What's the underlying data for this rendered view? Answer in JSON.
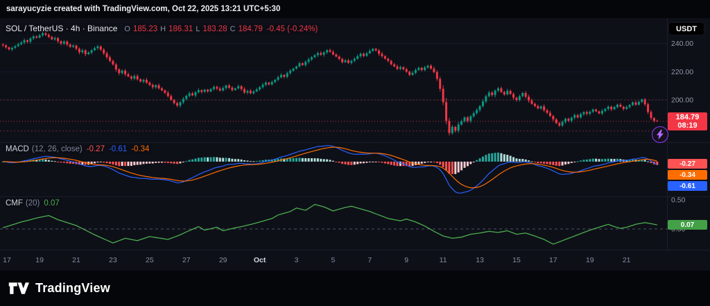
{
  "attribution": {
    "text": "sarayucyzie created with TradingView.com, Oct 22, 2025 13:21 UTC+5:30"
  },
  "header": {
    "symbol_title": "SOL / TetherUS · 4h · Binance",
    "ohlc_items": [
      {
        "label": "O",
        "value": "185.23"
      },
      {
        "label": "H",
        "value": "186.31"
      },
      {
        "label": "L",
        "value": "183.28"
      },
      {
        "label": "C",
        "value": "184.79"
      }
    ],
    "change": "-0.45 (-0.24%)",
    "value_color": "#f23645",
    "label_color": "#8a8fa0",
    "currency_button": "USDT"
  },
  "price_axis": {
    "labels": [
      {
        "text": "240.00",
        "price": 240
      },
      {
        "text": "220.00",
        "price": 220
      },
      {
        "text": "200.00",
        "price": 200
      }
    ],
    "last_price_badge": {
      "price": "184.79",
      "countdown": "08:19",
      "color": "#f23645"
    }
  },
  "indicators": {
    "macd": {
      "title": "MACD",
      "params": "(12, 26, close)",
      "status_values": [
        {
          "text": "-0.27",
          "color": "#ff5252"
        },
        {
          "text": "-0.61",
          "color": "#2962ff"
        },
        {
          "text": "-0.34",
          "color": "#ff6d00"
        }
      ],
      "badges": [
        {
          "text": "-0.27",
          "color": "#ff5252"
        },
        {
          "text": "-0.34",
          "color": "#ff6d00"
        },
        {
          "text": "-0.61",
          "color": "#2962ff"
        }
      ]
    },
    "cmf": {
      "title": "CMF",
      "params": "(20)",
      "value": "0.07",
      "value_color": "#4caf50",
      "badge": {
        "text": "0.07",
        "color": "#43a047"
      },
      "axis_labels": [
        {
          "text": "0.50",
          "value": 0.5
        },
        {
          "text": "0.00",
          "value": 0.0
        }
      ]
    }
  },
  "time_axis": {
    "labels": [
      {
        "text": "17",
        "index": 0
      },
      {
        "text": "19",
        "index": 12
      },
      {
        "text": "21",
        "index": 24
      },
      {
        "text": "23",
        "index": 36
      },
      {
        "text": "25",
        "index": 48
      },
      {
        "text": "27",
        "index": 60
      },
      {
        "text": "29",
        "index": 72
      },
      {
        "text": "Oct",
        "index": 84,
        "bold": true
      },
      {
        "text": "3",
        "index": 96
      },
      {
        "text": "5",
        "index": 108
      },
      {
        "text": "7",
        "index": 120
      },
      {
        "text": "9",
        "index": 132
      },
      {
        "text": "11",
        "index": 144
      },
      {
        "text": "13",
        "index": 156
      },
      {
        "text": "15",
        "index": 168
      },
      {
        "text": "17",
        "index": 180
      },
      {
        "text": "19",
        "index": 192
      },
      {
        "text": "21",
        "index": 204
      }
    ]
  },
  "footer": {
    "brand": "TradingView"
  },
  "chart_data": {
    "type": "candlestick",
    "symbol": "SOL / TetherUS",
    "exchange": "Binance",
    "interval": "4h",
    "panels": [
      "price",
      "MACD (12, 26, close)",
      "CMF (20)"
    ],
    "price_range": [
      170,
      258
    ],
    "last_candle": {
      "open": 185.23,
      "high": 186.31,
      "low": 183.28,
      "close": 184.79,
      "change": -0.45,
      "change_pct": -0.24
    },
    "closes": [
      238.6,
      237.2,
      235.8,
      236.9,
      238.1,
      239.4,
      240.6,
      242.3,
      241.2,
      243.6,
      245.0,
      244.1,
      245.8,
      247.3,
      246.1,
      244.6,
      242.9,
      243.8,
      241.6,
      239.9,
      241.3,
      239.2,
      237.6,
      238.5,
      236.2,
      233.8,
      235.1,
      232.4,
      233.5,
      235.2,
      236.7,
      237.9,
      235.6,
      233.0,
      230.2,
      227.6,
      225.1,
      221.6,
      219.0,
      220.7,
      218.2,
      216.6,
      215.1,
      216.9,
      214.6,
      213.0,
      214.2,
      212.2,
      210.6,
      209.0,
      210.4,
      208.2,
      206.7,
      205.0,
      202.7,
      200.0,
      197.7,
      196.0,
      198.4,
      200.7,
      202.9,
      204.6,
      203.2,
      205.4,
      206.9,
      205.7,
      207.2,
      206.0,
      207.7,
      209.2,
      208.0,
      206.7,
      208.4,
      210.2,
      208.7,
      207.0,
      208.2,
      209.7,
      207.7,
      205.2,
      206.4,
      204.7,
      206.0,
      207.4,
      209.0,
      210.7,
      212.2,
      211.0,
      212.7,
      214.2,
      216.0,
      217.7,
      216.4,
      219.0,
      220.7,
      222.2,
      223.7,
      226.0,
      224.7,
      227.0,
      228.7,
      230.2,
      231.7,
      233.2,
      232.0,
      233.7,
      235.2,
      234.0,
      232.2,
      230.7,
      229.0,
      226.7,
      228.0,
      226.2,
      227.7,
      229.2,
      231.0,
      232.7,
      231.2,
      233.0,
      234.7,
      236.2,
      235.0,
      232.7,
      231.0,
      229.2,
      227.7,
      225.2,
      223.7,
      222.0,
      223.2,
      221.7,
      220.0,
      217.7,
      219.2,
      221.2,
      222.7,
      221.2,
      223.0,
      224.2,
      222.2,
      219.7,
      214.9,
      207.9,
      198.4,
      185.2,
      176.6,
      180.9,
      178.2,
      182.6,
      184.9,
      187.6,
      185.2,
      188.4,
      190.6,
      192.9,
      195.6,
      198.9,
      202.6,
      205.2,
      203.4,
      206.6,
      208.2,
      205.6,
      203.9,
      206.4,
      204.2,
      201.6,
      199.9,
      202.6,
      204.9,
      202.2,
      199.6,
      197.2,
      195.6,
      193.9,
      195.4,
      192.6,
      190.9,
      188.6,
      186.2,
      183.6,
      181.9,
      184.4,
      186.6,
      185.2,
      187.4,
      189.2,
      187.6,
      189.9,
      191.4,
      190.2,
      191.6,
      193.2,
      191.9,
      190.4,
      192.2,
      193.6,
      195.2,
      193.4,
      194.9,
      196.6,
      195.2,
      193.6,
      194.9,
      196.4,
      198.2,
      196.6,
      198.6,
      200.4,
      196.9,
      191.4,
      187.2,
      185.2,
      184.79
    ],
    "price_levels": [
      {
        "price": 200,
        "color": "#6b2a33",
        "style": "dotted"
      },
      {
        "price": 178,
        "color": "#6b2a33",
        "style": "dotted"
      }
    ],
    "current_price_line": {
      "price": 184.79,
      "color": "#f23645"
    },
    "macd": {
      "fast": 12,
      "slow": 26,
      "smoothing": 9,
      "current_histogram": -0.27,
      "current_macd": -0.61,
      "current_signal": -0.34
    },
    "cmf": {
      "period": 20,
      "current": 0.07,
      "scale_top": 0.5,
      "zero_value": 0,
      "keypoints": [
        [
          0,
          0.02
        ],
        [
          6,
          0.12
        ],
        [
          12,
          0.2
        ],
        [
          15,
          0.23
        ],
        [
          18,
          0.16
        ],
        [
          24,
          0.06
        ],
        [
          27,
          -0.02
        ],
        [
          30,
          -0.1
        ],
        [
          36,
          -0.24
        ],
        [
          40,
          -0.16
        ],
        [
          44,
          -0.2
        ],
        [
          48,
          -0.13
        ],
        [
          54,
          -0.18
        ],
        [
          58,
          -0.1
        ],
        [
          60,
          -0.05
        ],
        [
          64,
          0.04
        ],
        [
          66,
          -0.02
        ],
        [
          70,
          0.03
        ],
        [
          72,
          -0.03
        ],
        [
          76,
          0.02
        ],
        [
          78,
          0.04
        ],
        [
          82,
          0.09
        ],
        [
          84,
          0.12
        ],
        [
          88,
          0.18
        ],
        [
          90,
          0.24
        ],
        [
          94,
          0.3
        ],
        [
          96,
          0.36
        ],
        [
          99,
          0.32
        ],
        [
          102,
          0.42
        ],
        [
          105,
          0.38
        ],
        [
          108,
          0.31
        ],
        [
          112,
          0.37
        ],
        [
          114,
          0.39
        ],
        [
          118,
          0.33
        ],
        [
          120,
          0.3
        ],
        [
          124,
          0.22
        ],
        [
          126,
          0.18
        ],
        [
          130,
          0.14
        ],
        [
          132,
          0.17
        ],
        [
          135,
          0.12
        ],
        [
          138,
          0.05
        ],
        [
          141,
          -0.04
        ],
        [
          144,
          -0.12
        ],
        [
          147,
          -0.16
        ],
        [
          150,
          -0.14
        ],
        [
          153,
          -0.09
        ],
        [
          156,
          -0.07
        ],
        [
          159,
          -0.04
        ],
        [
          162,
          -0.06
        ],
        [
          165,
          -0.03
        ],
        [
          168,
          -0.09
        ],
        [
          171,
          -0.07
        ],
        [
          174,
          -0.12
        ],
        [
          177,
          -0.18
        ],
        [
          180,
          -0.26
        ],
        [
          183,
          -0.2
        ],
        [
          186,
          -0.14
        ],
        [
          189,
          -0.08
        ],
        [
          192,
          -0.02
        ],
        [
          195,
          0.03
        ],
        [
          198,
          0.08
        ],
        [
          200,
          0.04
        ],
        [
          202,
          0.01
        ],
        [
          204,
          0.03
        ],
        [
          207,
          0.08
        ],
        [
          210,
          0.11
        ],
        [
          212,
          0.09
        ],
        [
          214,
          0.07
        ]
      ]
    },
    "colors": {
      "up": "#089981",
      "down": "#f23645",
      "macd_line": "#2962ff",
      "signal_line": "#ff6d00",
      "hist_grow_above": "#26a69a",
      "hist_fall_above": "#b2dfdb",
      "hist_fall_below": "#ff5252",
      "hist_grow_below": "#ffcdd2",
      "cmf_line": "#4caf50"
    }
  }
}
